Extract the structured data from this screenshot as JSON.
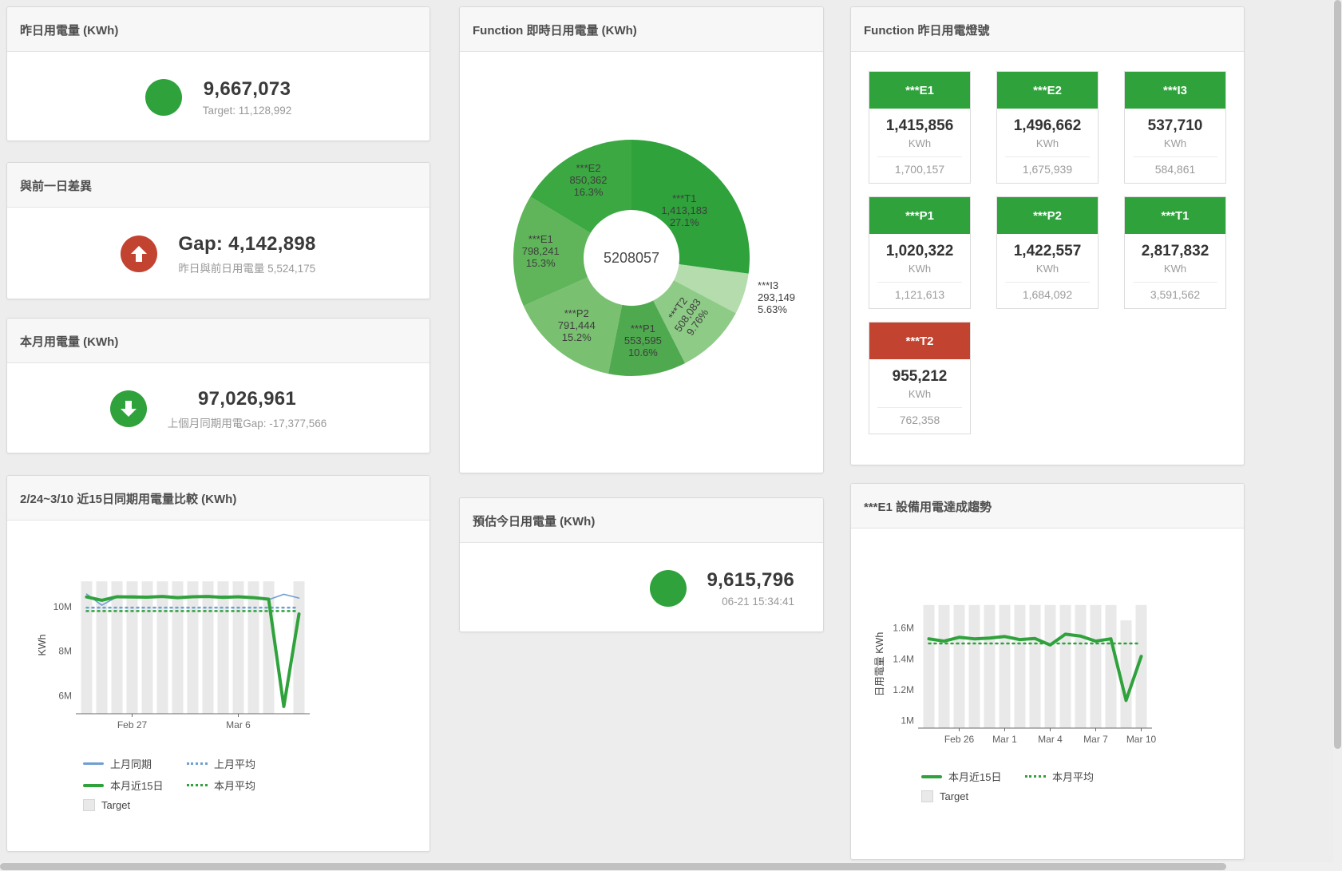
{
  "accent": {
    "green": "#2fa23c",
    "red": "#c2432f"
  },
  "panels": {
    "yesterday": {
      "title": "昨日用電量 (KWh)",
      "value": "9,667,073",
      "subtitle": "Target: 11,128,992"
    },
    "gap": {
      "title": "與前一日差異",
      "value": "Gap: 4,142,898",
      "subtitle": "昨日與前日用電量 5,524,175"
    },
    "month": {
      "title": "本月用電量 (KWh)",
      "value": "97,026,961",
      "subtitle": "上個月同期用電Gap: -17,377,566"
    },
    "compare": {
      "title": "2/24~3/10 近15日同期用電量比較 (KWh)"
    },
    "donut": {
      "title": "Function 即時日用電量 (KWh)"
    },
    "estimate": {
      "title": "預估今日用電量 (KWh)",
      "value": "9,615,796",
      "subtitle": "06-21 15:34:41"
    },
    "lights": {
      "title": "Function 昨日用電燈號",
      "tiles": [
        {
          "name": "***E1",
          "value": "1,415,856",
          "unit": "KWh",
          "target": "1,700,157",
          "status": "green"
        },
        {
          "name": "***E2",
          "value": "1,496,662",
          "unit": "KWh",
          "target": "1,675,939",
          "status": "green"
        },
        {
          "name": "***I3",
          "value": "537,710",
          "unit": "KWh",
          "target": "584,861",
          "status": "green"
        },
        {
          "name": "***P1",
          "value": "1,020,322",
          "unit": "KWh",
          "target": "1,121,613",
          "status": "green"
        },
        {
          "name": "***P2",
          "value": "1,422,557",
          "unit": "KWh",
          "target": "1,684,092",
          "status": "green"
        },
        {
          "name": "***T1",
          "value": "2,817,832",
          "unit": "KWh",
          "target": "3,591,562",
          "status": "green"
        },
        {
          "name": "***T2",
          "value": "955,212",
          "unit": "KWh",
          "target": "762,358",
          "status": "red"
        }
      ]
    },
    "e1trend": {
      "title": "***E1 設備用電達成趨勢"
    }
  },
  "chart_data": [
    {
      "id": "donut",
      "type": "pie",
      "title": "Function 即時日用電量 (KWh)",
      "center_label": "5208057",
      "slices": [
        {
          "name": "***T1",
          "value": 1413183,
          "percent": "27.1%",
          "color": "#2fa23c",
          "label_r": 88
        },
        {
          "name": "***I3",
          "value": 293149,
          "percent": "5.63%",
          "color": "#b4dcac",
          "label_outside": true,
          "label_r": 166
        },
        {
          "name": "***T2",
          "value": 508083,
          "percent": "9.76%",
          "color": "#8ecb86",
          "label_r": 102,
          "label_rotate": -55
        },
        {
          "name": "***P1",
          "value": 553595,
          "percent": "10.6%",
          "color": "#4fa94f",
          "label_r": 106
        },
        {
          "name": "***P2",
          "value": 791444,
          "percent": "15.2%",
          "color": "#7ac071",
          "label_r": 110
        },
        {
          "name": "***E1",
          "value": 798241,
          "percent": "15.3%",
          "color": "#60b55a",
          "label_r": 114
        },
        {
          "name": "***E2",
          "value": 850362,
          "percent": "16.3%",
          "color": "#3ca842",
          "label_r": 110
        }
      ]
    },
    {
      "id": "compare",
      "type": "line",
      "title": "2/24~3/10 近15日同期用電量比較 (KWh)",
      "ylabel": "KWh",
      "n": 15,
      "ylim": [
        5200000,
        11350000
      ],
      "yticks": [
        {
          "v": 6000000,
          "label": "6M"
        },
        {
          "v": 8000000,
          "label": "8M"
        },
        {
          "v": 10000000,
          "label": "10M"
        }
      ],
      "xticks": [
        {
          "i": 3,
          "label": "Feb 27"
        },
        {
          "i": 10,
          "label": "Mar 6"
        }
      ],
      "target_bars": {
        "name": "Target",
        "color": "#e9e9e9",
        "values": [
          11128992,
          11128992,
          11128992,
          11128992,
          11128992,
          11128992,
          11128992,
          11128992,
          11128992,
          11128992,
          11128992,
          11128992,
          11128992,
          0,
          11128992
        ]
      },
      "series": [
        {
          "name": "上月同期",
          "color": "#6f9fd2",
          "width": 1.6,
          "dash": false,
          "values": [
            10560000,
            10060000,
            10430000,
            10480000,
            10430000,
            10470000,
            10440000,
            10460000,
            10430000,
            10470000,
            10440000,
            10410000,
            10310000,
            10550000,
            10380000
          ]
        },
        {
          "name": "上月平均",
          "color": "#6f9fd2",
          "width": 2.5,
          "dash": true,
          "value_const": 9950000
        },
        {
          "name": "本月近15日",
          "color": "#2fa23c",
          "width": 4,
          "dash": false,
          "values": [
            10430000,
            10280000,
            10440000,
            10430000,
            10420000,
            10450000,
            10400000,
            10440000,
            10450000,
            10410000,
            10440000,
            10400000,
            10330000,
            5524175,
            9667073
          ]
        },
        {
          "name": "本月平均",
          "color": "#2fa23c",
          "width": 2.5,
          "dash": true,
          "value_const": 9800000
        }
      ],
      "legend": [
        [
          {
            "label": "上月同期",
            "swatch": "line",
            "color": "#6f9fd2"
          },
          {
            "label": "上月平均",
            "swatch": "dash",
            "color": "#6f9fd2"
          }
        ],
        [
          {
            "label": "本月近15日",
            "swatch": "line-thick",
            "color": "#2fa23c"
          },
          {
            "label": "本月平均",
            "swatch": "dash",
            "color": "#2fa23c"
          }
        ],
        [
          {
            "label": "Target",
            "swatch": "box",
            "color": "#e9e9e9"
          }
        ]
      ]
    },
    {
      "id": "e1trend",
      "type": "line",
      "title": "***E1 設備用電達成趨勢",
      "ylabel": "日用電量 KWh",
      "n": 15,
      "ylim": [
        950000,
        1780000
      ],
      "yticks": [
        {
          "v": 1000000,
          "label": "1M"
        },
        {
          "v": 1200000,
          "label": "1.2M"
        },
        {
          "v": 1400000,
          "label": "1.4M"
        },
        {
          "v": 1600000,
          "label": "1.6M"
        }
      ],
      "xticks": [
        {
          "i": 2,
          "label": "Feb 26"
        },
        {
          "i": 5,
          "label": "Mar 1"
        },
        {
          "i": 8,
          "label": "Mar 4"
        },
        {
          "i": 11,
          "label": "Mar 7"
        },
        {
          "i": 14,
          "label": "Mar 10"
        }
      ],
      "target_bars": {
        "name": "Target",
        "color": "#e9e9e9",
        "values": [
          1750000,
          1750000,
          1750000,
          1750000,
          1750000,
          1750000,
          1750000,
          1750000,
          1750000,
          1750000,
          1750000,
          1750000,
          1750000,
          1650000,
          1750000
        ]
      },
      "series": [
        {
          "name": "本月近15日",
          "color": "#2fa23c",
          "width": 4,
          "dash": false,
          "values": [
            1530000,
            1515000,
            1540000,
            1530000,
            1535000,
            1545000,
            1525000,
            1532000,
            1490000,
            1560000,
            1548000,
            1515000,
            1530000,
            1130000,
            1415856
          ]
        },
        {
          "name": "本月平均",
          "color": "#2fa23c",
          "width": 2.5,
          "dash": true,
          "value_const": 1500000
        }
      ],
      "legend": [
        [
          {
            "label": "本月近15日",
            "swatch": "line-thick",
            "color": "#2fa23c"
          },
          {
            "label": "本月平均",
            "swatch": "dash",
            "color": "#2fa23c"
          }
        ],
        [
          {
            "label": "Target",
            "swatch": "box",
            "color": "#e9e9e9"
          }
        ]
      ]
    }
  ]
}
